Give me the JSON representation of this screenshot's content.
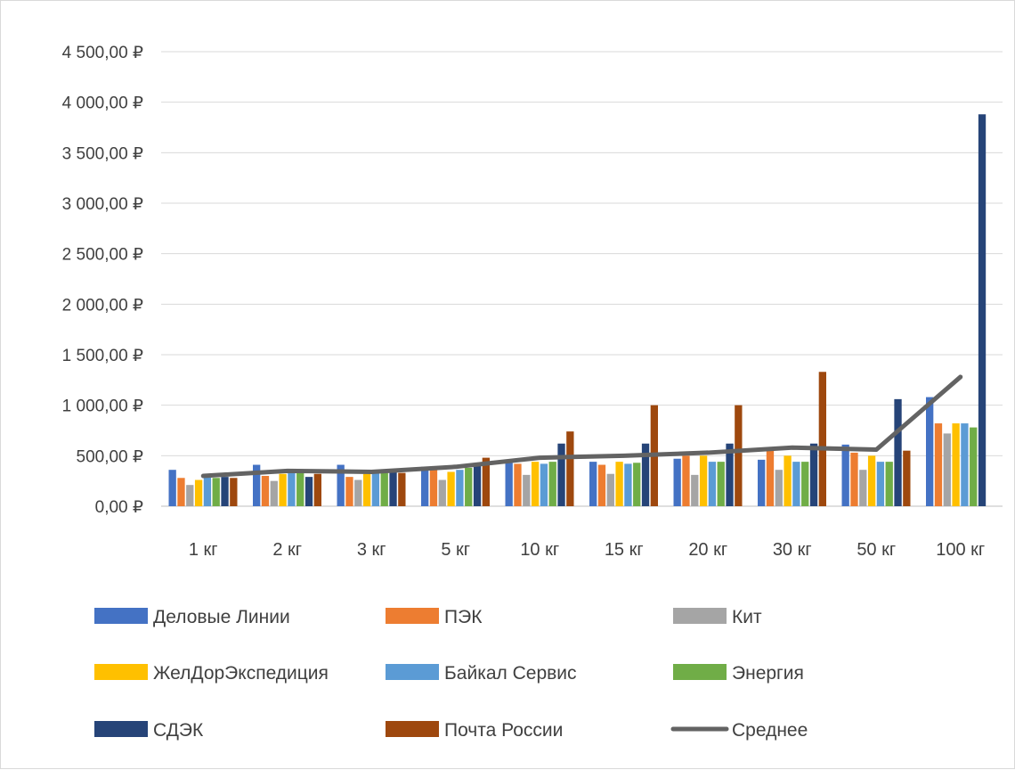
{
  "chart_data": {
    "type": "bar",
    "title": "",
    "xlabel": "",
    "ylabel": "",
    "ylim": [
      0,
      4500
    ],
    "ytick_values": [
      0,
      500,
      1000,
      1500,
      2000,
      2500,
      3000,
      3500,
      4000,
      4500
    ],
    "ytick_labels": [
      "0,00 ₽",
      "500,00 ₽",
      "1 000,00 ₽",
      "1 500,00 ₽",
      "2 000,00 ₽",
      "2 500,00 ₽",
      "3 000,00 ₽",
      "3 500,00 ₽",
      "4 000,00 ₽",
      "4 500,00 ₽"
    ],
    "categories": [
      "1 кг",
      "2 кг",
      "3 кг",
      "5 кг",
      "10 кг",
      "15 кг",
      "20 кг",
      "30 кг",
      "50 кг",
      "100 кг"
    ],
    "grid": true,
    "legend_position": "bottom",
    "series": [
      {
        "name": "Деловые Линии",
        "type": "bar",
        "color": "#4472C4",
        "values": [
          360,
          410,
          410,
          390,
          430,
          440,
          470,
          460,
          610,
          1080
        ]
      },
      {
        "name": "ПЭК",
        "type": "bar",
        "color": "#ED7D31",
        "values": [
          280,
          300,
          290,
          370,
          420,
          410,
          500,
          570,
          530,
          820
        ]
      },
      {
        "name": "Кит",
        "type": "bar",
        "color": "#A5A5A5",
        "values": [
          210,
          250,
          260,
          260,
          310,
          320,
          310,
          360,
          360,
          720
        ]
      },
      {
        "name": "ЖелДорЭкспедиция",
        "type": "bar",
        "color": "#FFC000",
        "values": [
          260,
          320,
          320,
          340,
          440,
          440,
          500,
          500,
          500,
          820
        ]
      },
      {
        "name": "Байкал Сервис",
        "type": "bar",
        "color": "#5B9BD5",
        "values": [
          290,
          340,
          330,
          360,
          420,
          420,
          440,
          440,
          440,
          820
        ]
      },
      {
        "name": "Энергия",
        "type": "bar",
        "color": "#70AD47",
        "values": [
          280,
          330,
          330,
          380,
          440,
          430,
          440,
          440,
          440,
          780
        ]
      },
      {
        "name": "СДЭК",
        "type": "bar",
        "color": "#264478",
        "values": [
          290,
          290,
          360,
          400,
          620,
          620,
          620,
          620,
          1060,
          3880
        ]
      },
      {
        "name": "Почта России",
        "type": "bar",
        "color": "#9E480E",
        "values": [
          280,
          320,
          330,
          480,
          740,
          1000,
          1000,
          1330,
          550,
          null
        ]
      },
      {
        "name": "Среднее",
        "type": "line",
        "color": "#636363",
        "values": [
          300,
          350,
          340,
          390,
          480,
          500,
          530,
          580,
          560,
          1280
        ]
      }
    ]
  }
}
